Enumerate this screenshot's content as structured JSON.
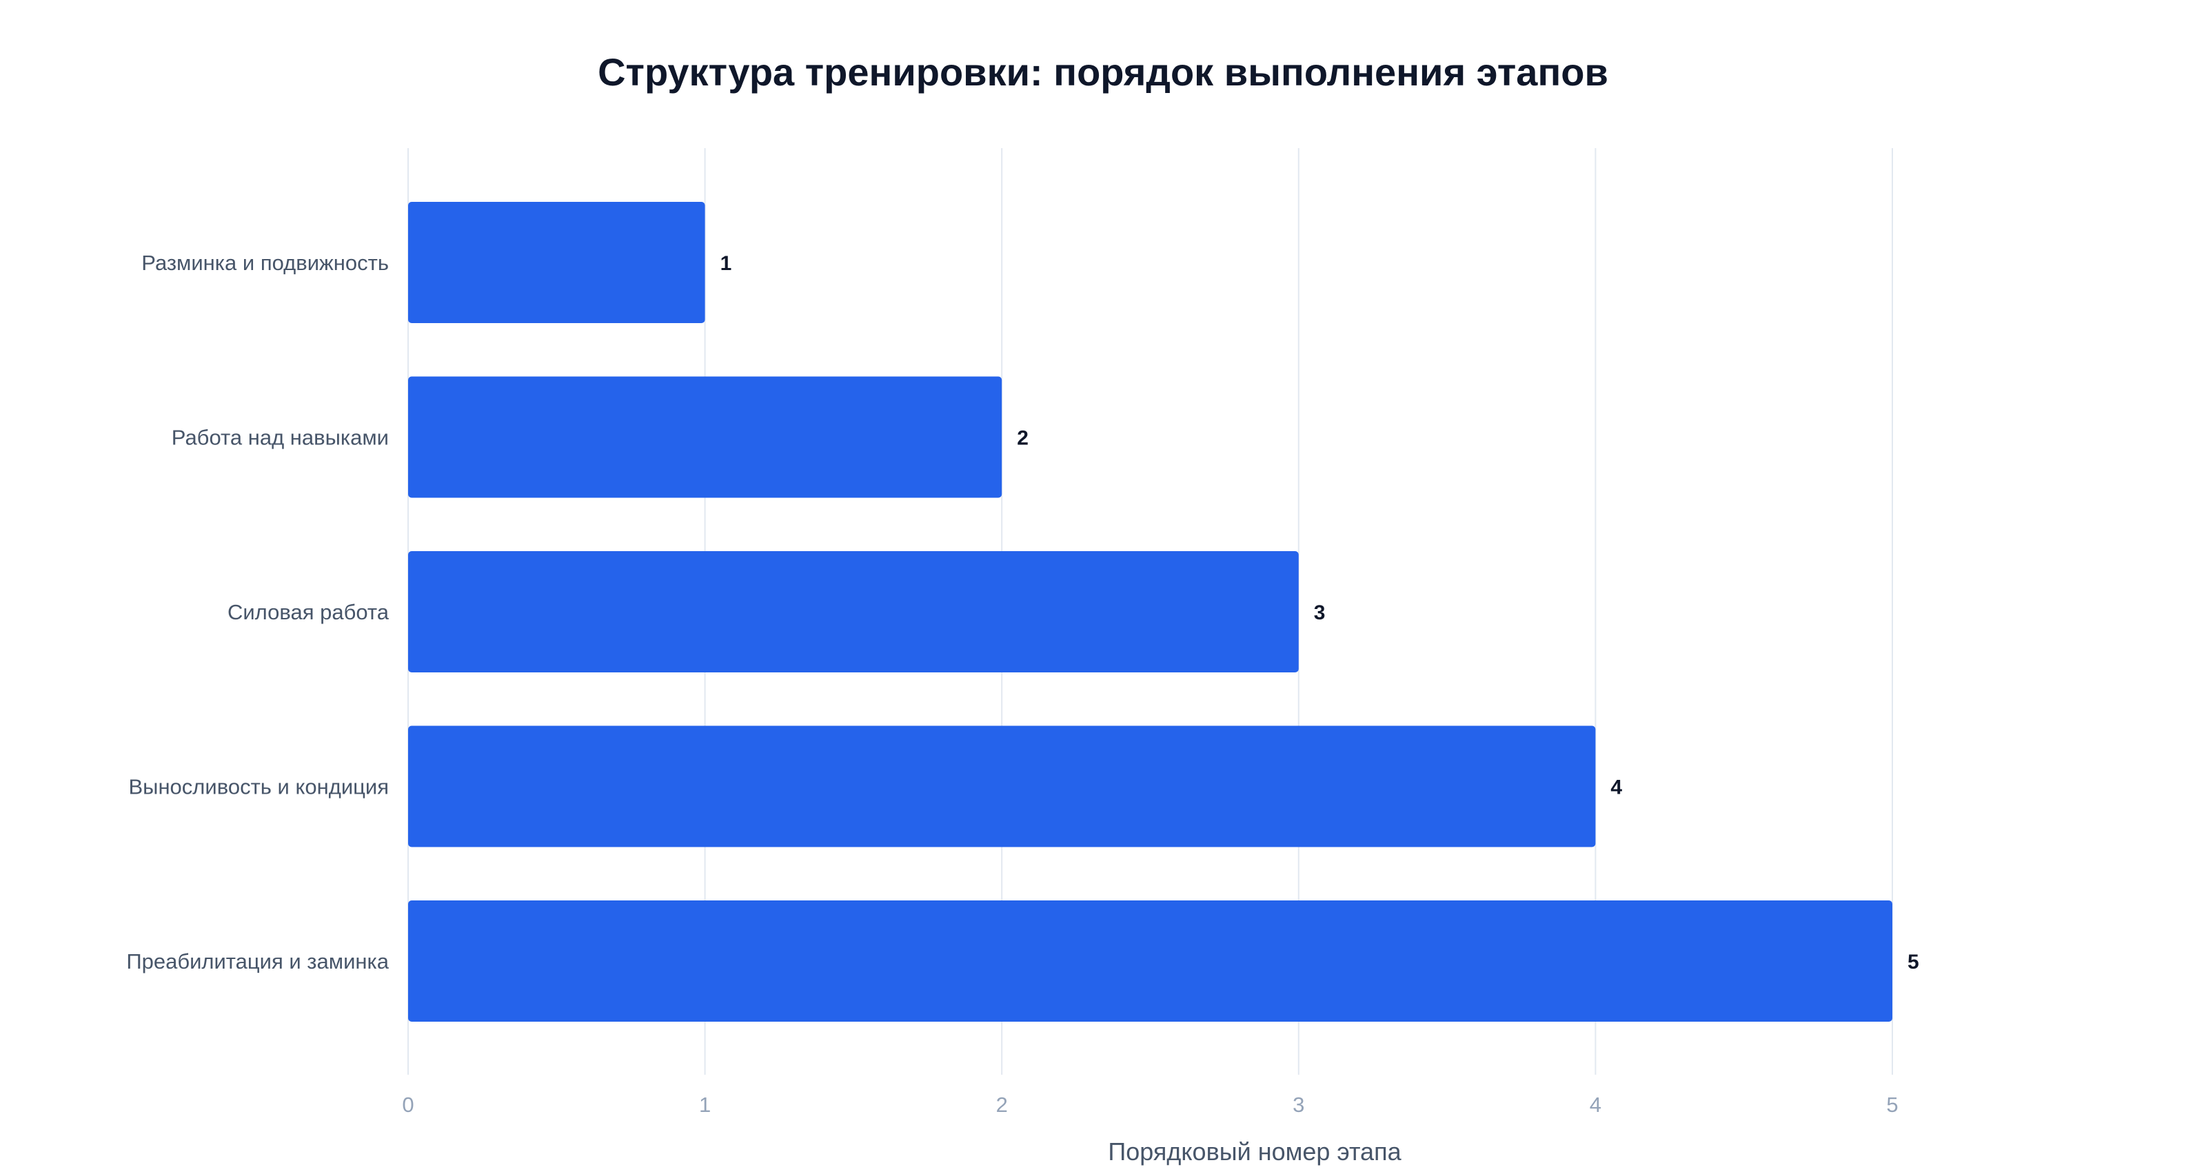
{
  "chart_data": {
    "type": "bar",
    "orientation": "horizontal",
    "title": "Структура тренировки: порядок выполнения этапов",
    "xlabel": "Порядковый номер этапа",
    "ylabel": "",
    "categories": [
      "Разминка и подвижность",
      "Работа над навыками",
      "Силовая работа",
      "Выносливость и кондиция",
      "Преабилитация и заминка"
    ],
    "values": [
      1,
      2,
      3,
      4,
      5
    ],
    "data_labels": [
      "1",
      "2",
      "3",
      "4",
      "5"
    ],
    "xlim": [
      0,
      5
    ],
    "x_ticks": [
      0,
      1,
      2,
      3,
      4,
      5
    ],
    "x_tick_labels": [
      "0",
      "1",
      "2",
      "3",
      "4",
      "5"
    ],
    "grid": "vertical",
    "legend": "none"
  },
  "colors": {
    "bar": "#2563eb",
    "grid": "#e2e8f0",
    "title": "#0f172a",
    "category_label": "#475569",
    "tick_label": "#94a3b8",
    "data_label": "#0f172a"
  }
}
